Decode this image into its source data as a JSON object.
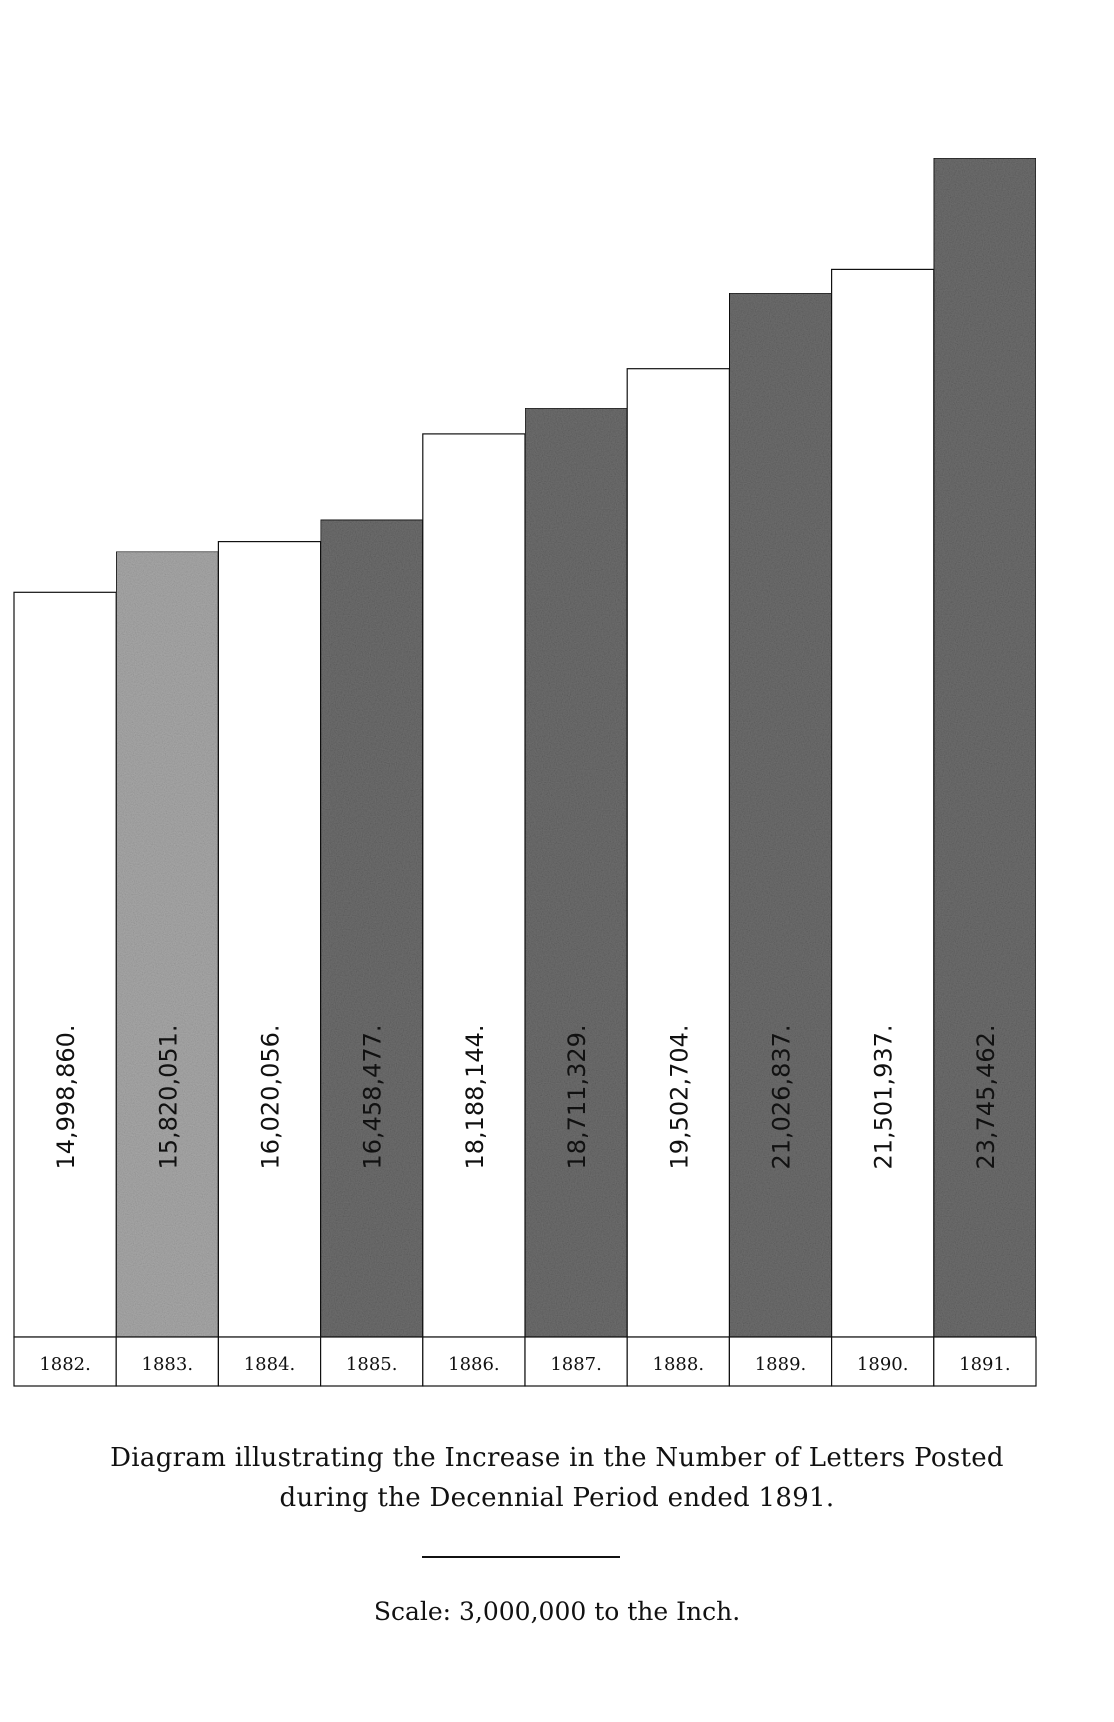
{
  "chart_data": {
    "type": "bar",
    "title": "Diagram illustrating the Increase in the Number of Letters Posted",
    "subtitle": "during the Decennial Period ended 1891.",
    "scale_note": "Scale: 3,000,000 to the Inch.",
    "categories": [
      "1882.",
      "1883.",
      "1884.",
      "1885.",
      "1886.",
      "1887.",
      "1888.",
      "1889.",
      "1890.",
      "1891."
    ],
    "values": [
      14998860,
      15820051,
      16020056,
      16458477,
      18188144,
      18711329,
      19502704,
      21026837,
      21501937,
      23745462
    ],
    "value_labels": [
      "14,998,860.",
      "15,820,051.",
      "16,020,056.",
      "16,458,477.",
      "18,188,144.",
      "18,711,329.",
      "19,502,704.",
      "21,026,837.",
      "21,501,937.",
      "23,745,462."
    ],
    "fills": [
      "white",
      "light-stipple",
      "white",
      "dark-stipple",
      "white",
      "dark-stipple",
      "white",
      "dark-stipple",
      "white",
      "dark-stipple"
    ],
    "ylim": [
      0,
      23745462
    ],
    "grid": false,
    "legend": "none"
  },
  "colors": {
    "ink": "#111111",
    "paper": "#ffffff",
    "light_stipple": "#a9a9a9",
    "dark_stipple": "#6f6f6f"
  }
}
